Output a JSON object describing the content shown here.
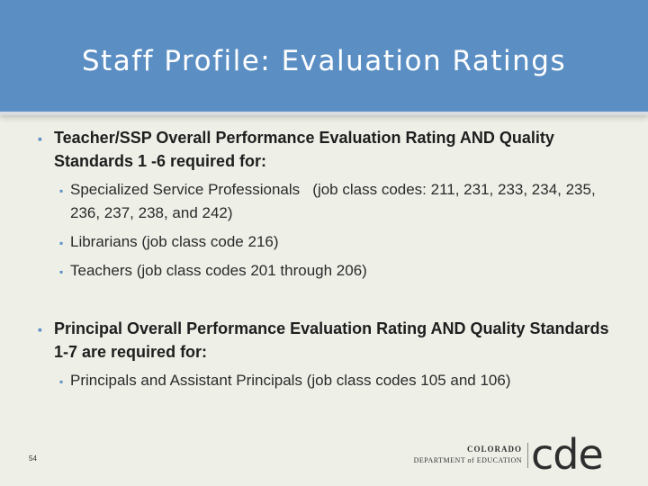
{
  "slide": {
    "title": "Staff Profile: Evaluation Ratings",
    "page_number": "54"
  },
  "bullets": {
    "teacher_heading": "Teacher/SSP Overall Performance Evaluation Rating AND Quality Standards 1 -6 required for:",
    "teacher_items": [
      "Specialized Service Professionals   (job class codes: 211, 231, 233, 234, 235, 236, 237, 238, and 242)",
      "Librarians (job class code 216)",
      "Teachers (job class codes 201 through 206)"
    ],
    "principal_heading": "Principal Overall Performance Evaluation Rating AND Quality Standards 1-7 are required for:",
    "principal_items": [
      "Principals and Assistant Principals (job class codes 105 and 106)"
    ]
  },
  "logo": {
    "line1": "COLORADO",
    "line2": "DEPARTMENT of EDUCATION",
    "mark": "cde"
  },
  "colors": {
    "header": "#5b8fc4",
    "background": "#eef0e8",
    "bullet": "#5b8fc4"
  }
}
